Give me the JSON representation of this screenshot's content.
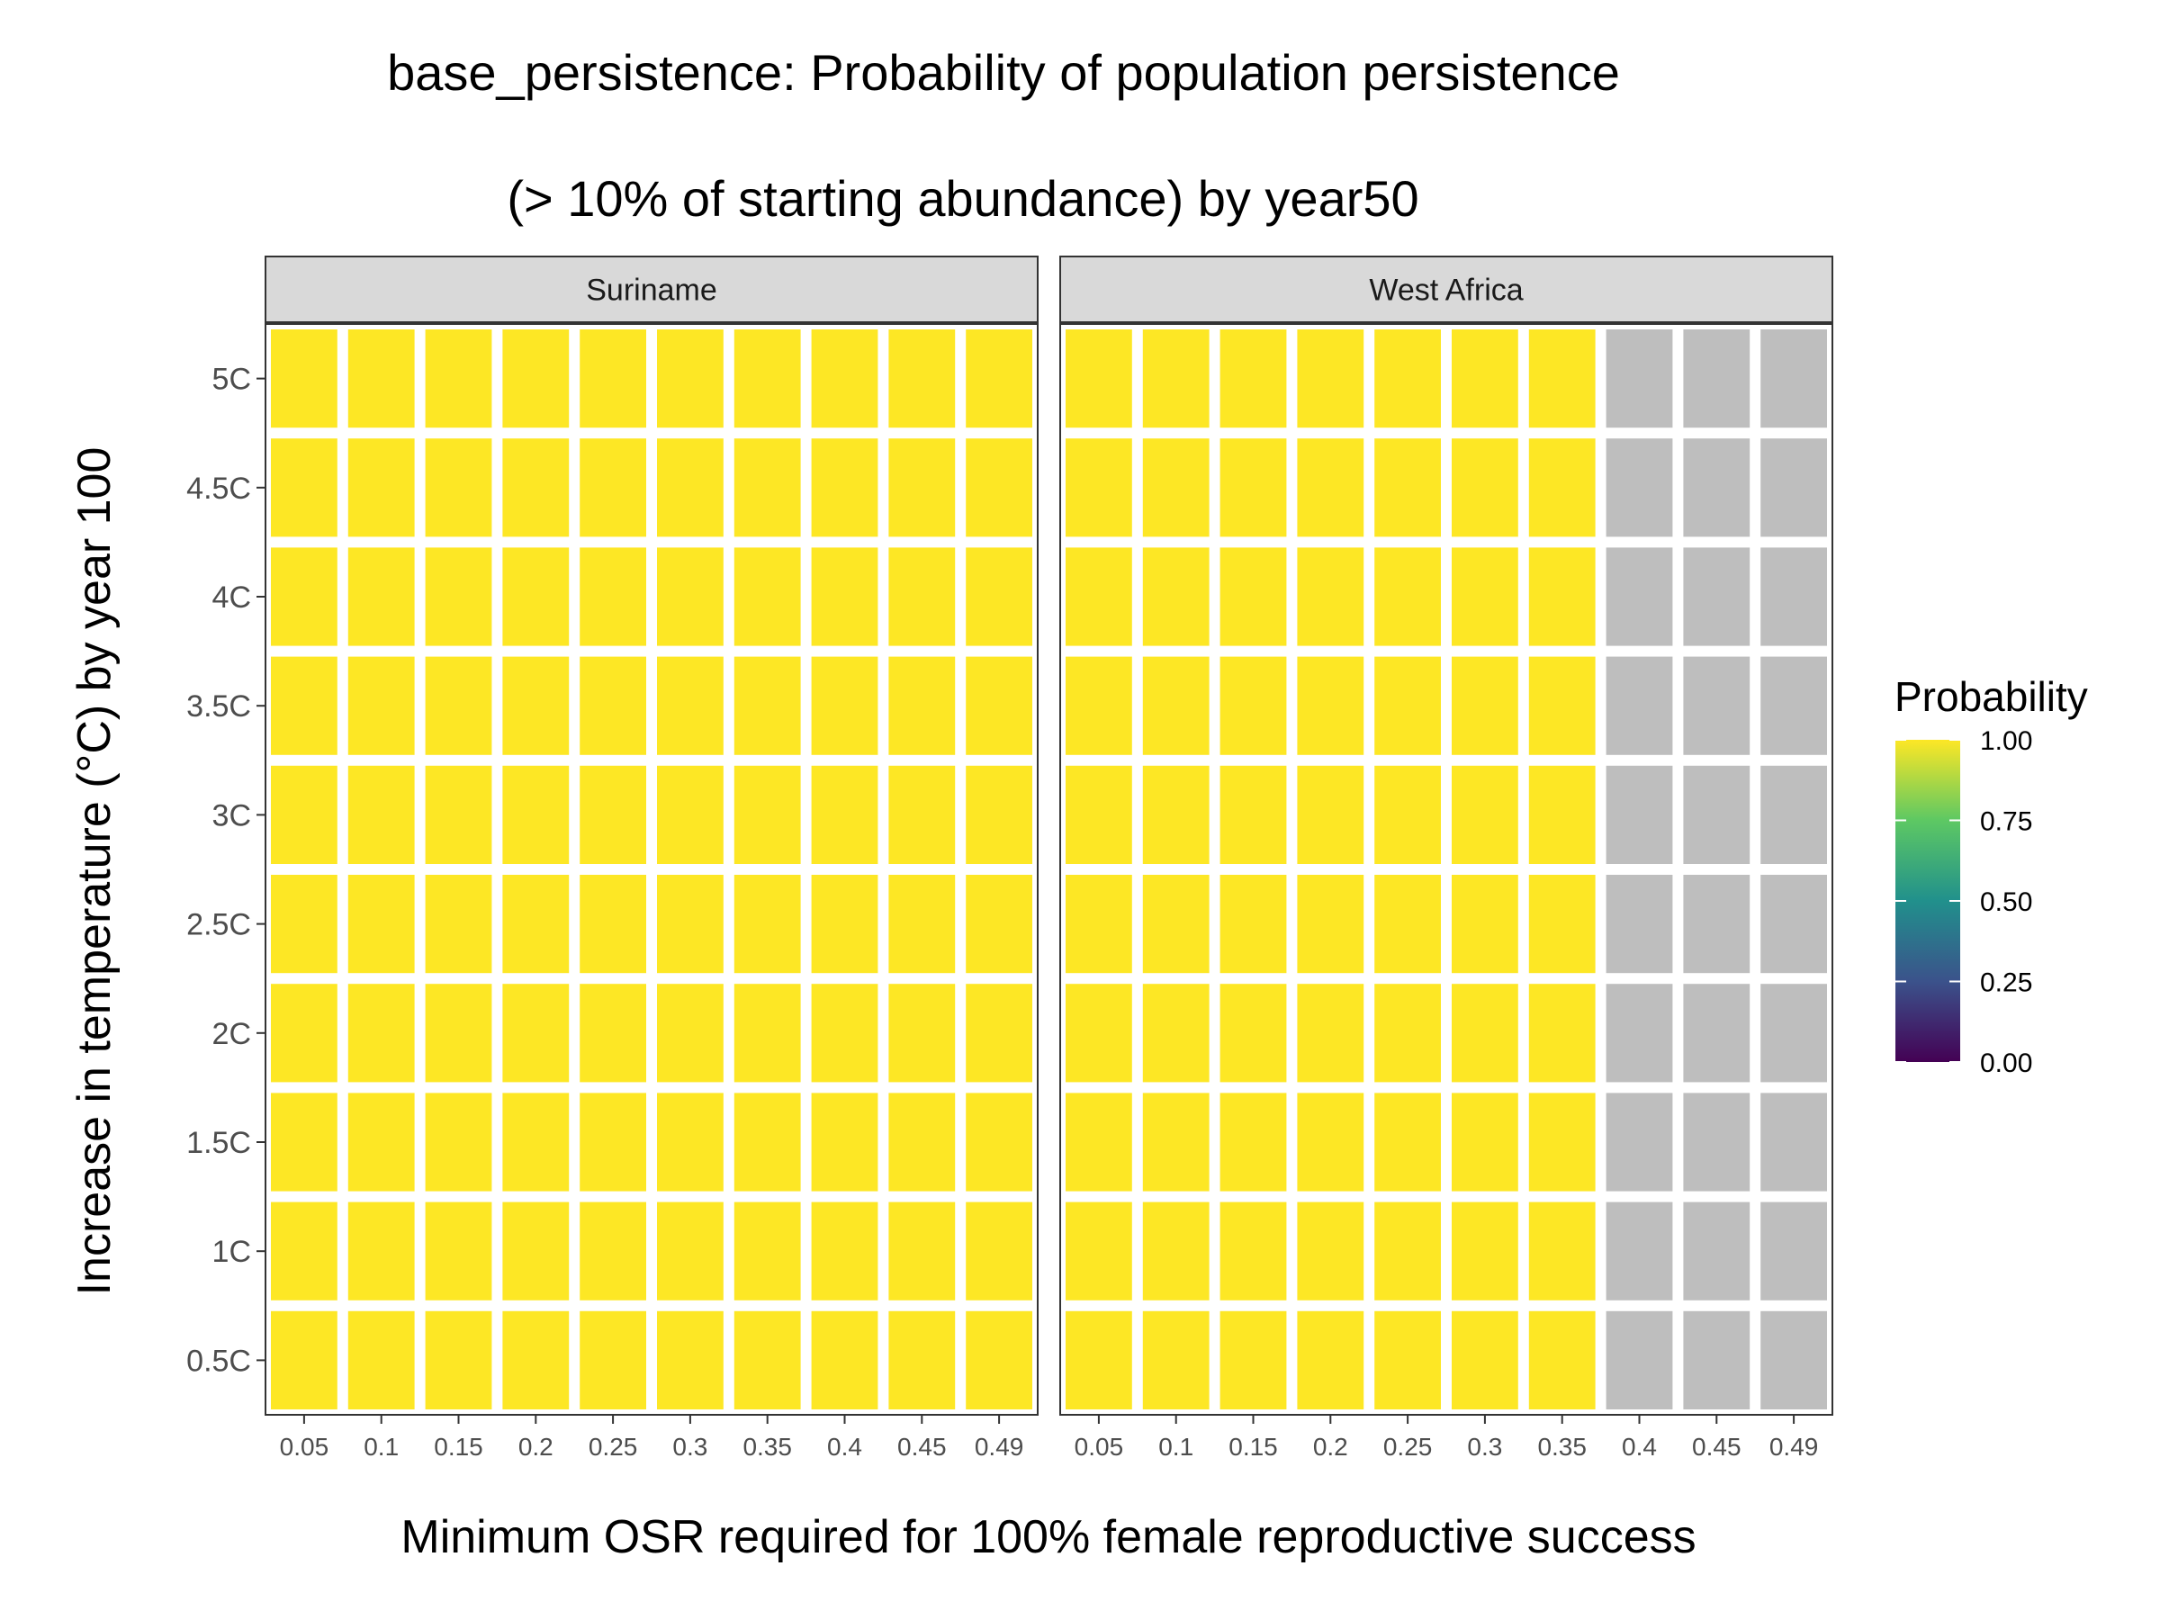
{
  "chart_data": {
    "type": "heatmap",
    "title_line1": "base_persistence: Probability of population persistence",
    "title_line2": "(> 10% of starting abundance) by year50",
    "xlabel": "Minimum OSR required for 100% female reproductive success",
    "ylabel": "Increase in temperature (°C) by year 100",
    "x_categories": [
      "0.05",
      "0.1",
      "0.15",
      "0.2",
      "0.25",
      "0.3",
      "0.35",
      "0.4",
      "0.45",
      "0.49"
    ],
    "y_categories": [
      "0.5C",
      "1C",
      "1.5C",
      "2C",
      "2.5C",
      "3C",
      "3.5C",
      "4C",
      "4.5C",
      "5C"
    ],
    "facets": [
      {
        "name": "Suriname",
        "values": [
          [
            1,
            1,
            1,
            1,
            1,
            1,
            1,
            1,
            1,
            1
          ],
          [
            1,
            1,
            1,
            1,
            1,
            1,
            1,
            1,
            1,
            1
          ],
          [
            1,
            1,
            1,
            1,
            1,
            1,
            1,
            1,
            1,
            1
          ],
          [
            1,
            1,
            1,
            1,
            1,
            1,
            1,
            1,
            1,
            1
          ],
          [
            1,
            1,
            1,
            1,
            1,
            1,
            1,
            1,
            1,
            1
          ],
          [
            1,
            1,
            1,
            1,
            1,
            1,
            1,
            1,
            1,
            1
          ],
          [
            1,
            1,
            1,
            1,
            1,
            1,
            1,
            1,
            1,
            1
          ],
          [
            1,
            1,
            1,
            1,
            1,
            1,
            1,
            1,
            1,
            1
          ],
          [
            1,
            1,
            1,
            1,
            1,
            1,
            1,
            1,
            1,
            1
          ],
          [
            1,
            1,
            1,
            1,
            1,
            1,
            1,
            1,
            1,
            1
          ]
        ]
      },
      {
        "name": "West Africa",
        "values": [
          [
            1,
            1,
            1,
            1,
            1,
            1,
            1,
            null,
            null,
            null
          ],
          [
            1,
            1,
            1,
            1,
            1,
            1,
            1,
            null,
            null,
            null
          ],
          [
            1,
            1,
            1,
            1,
            1,
            1,
            1,
            null,
            null,
            null
          ],
          [
            1,
            1,
            1,
            1,
            1,
            1,
            1,
            null,
            null,
            null
          ],
          [
            1,
            1,
            1,
            1,
            1,
            1,
            1,
            null,
            null,
            null
          ],
          [
            1,
            1,
            1,
            1,
            1,
            1,
            1,
            null,
            null,
            null
          ],
          [
            1,
            1,
            1,
            1,
            1,
            1,
            1,
            null,
            null,
            null
          ],
          [
            1,
            1,
            1,
            1,
            1,
            1,
            1,
            null,
            null,
            null
          ],
          [
            1,
            1,
            1,
            1,
            1,
            1,
            1,
            null,
            null,
            null
          ],
          [
            1,
            1,
            1,
            1,
            1,
            1,
            1,
            null,
            null,
            null
          ]
        ]
      }
    ],
    "legend": {
      "title": "Probability",
      "placement": "right",
      "ticks": [
        "0.00",
        "0.25",
        "0.50",
        "0.75",
        "1.00"
      ],
      "tick_values": [
        0,
        0.25,
        0.5,
        0.75,
        1
      ],
      "palette": "viridis",
      "colors": [
        "#440154",
        "#3B528B",
        "#21908C",
        "#5DC863",
        "#FDE725"
      ]
    },
    "na_color": "#BEBEBE",
    "value_range": [
      0,
      1
    ],
    "grid": false
  }
}
